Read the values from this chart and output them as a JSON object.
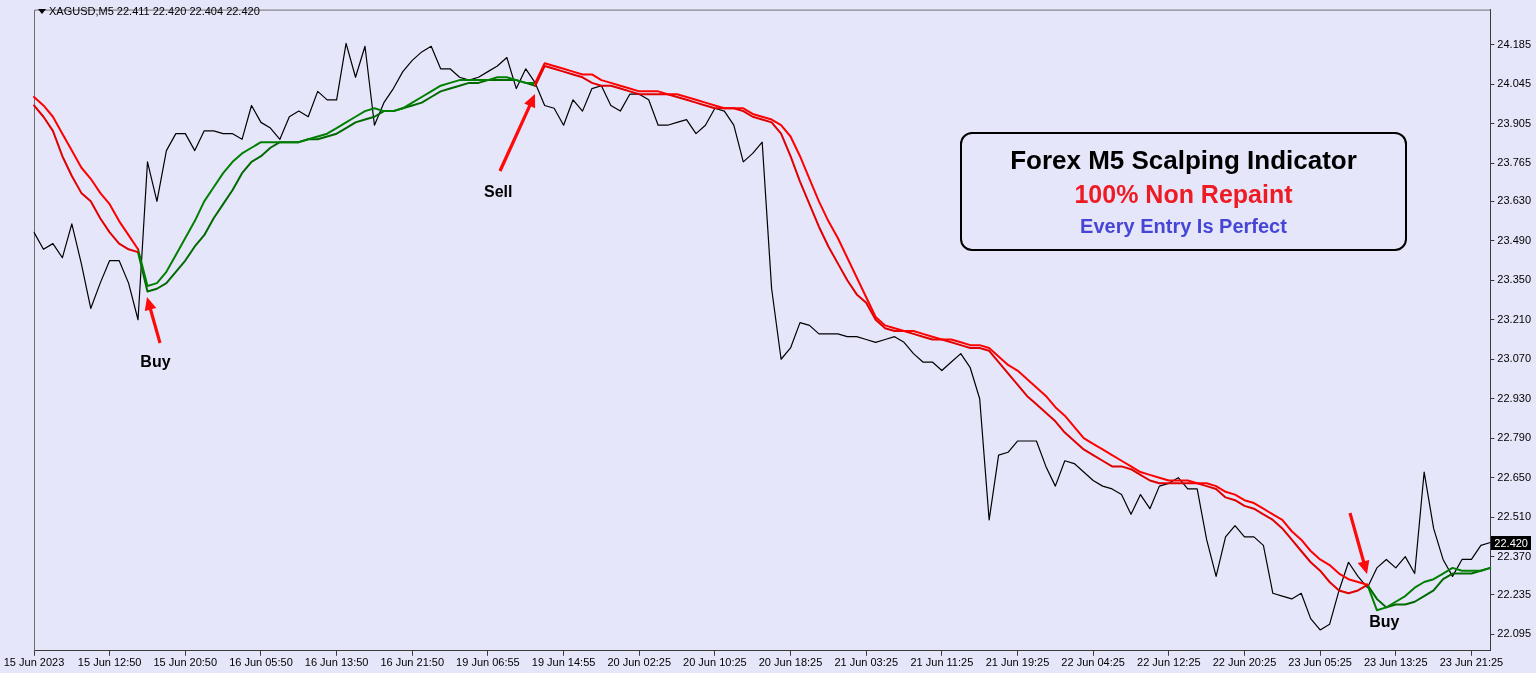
{
  "chart_data": {
    "type": "line",
    "title": "XAGUSD,M5 22.411 22.420 22.404 22.420",
    "annotations": [
      "Forex M5 Scalping Indicator",
      "100% Non Repaint",
      "Every Entry Is Perfect",
      "Buy",
      "Sell",
      "Buy",
      {
        "text": "22.420",
        "y": 22.42
      }
    ],
    "categories": [
      "15 Jun 2023",
      null,
      null,
      null,
      null,
      null,
      null,
      null,
      "15 Jun 12:50",
      null,
      null,
      null,
      null,
      null,
      null,
      null,
      "15 Jun 20:50",
      null,
      null,
      null,
      null,
      null,
      null,
      null,
      "16 Jun 05:50",
      null,
      null,
      null,
      null,
      null,
      null,
      null,
      "16 Jun 13:50",
      null,
      null,
      null,
      null,
      null,
      null,
      null,
      "16 Jun 21:50",
      null,
      null,
      null,
      null,
      null,
      null,
      null,
      "19 Jun 06:55",
      null,
      null,
      null,
      null,
      null,
      null,
      null,
      "19 Jun 14:55",
      null,
      null,
      null,
      null,
      null,
      null,
      null,
      "20 Jun 02:25",
      null,
      null,
      null,
      null,
      null,
      null,
      null,
      "20 Jun 10:25",
      null,
      null,
      null,
      null,
      null,
      null,
      null,
      "20 Jun 18:25",
      null,
      null,
      null,
      null,
      null,
      null,
      null,
      "21 Jun 03:25",
      null,
      null,
      null,
      null,
      null,
      null,
      null,
      "21 Jun 11:25",
      null,
      null,
      null,
      null,
      null,
      null,
      null,
      "21 Jun 19:25",
      null,
      null,
      null,
      null,
      null,
      null,
      null,
      "22 Jun 04:25",
      null,
      null,
      null,
      null,
      null,
      null,
      null,
      "22 Jun 12:25",
      null,
      null,
      null,
      null,
      null,
      null,
      null,
      "22 Jun 20:25",
      null,
      null,
      null,
      null,
      null,
      null,
      null,
      "23 Jun 05:25",
      null,
      null,
      null,
      null,
      null,
      null,
      null,
      "23 Jun 13:25",
      null,
      null,
      null,
      null,
      null,
      null,
      null,
      "23 Jun 21:25",
      null,
      null
    ],
    "series": [
      {
        "color": "#000000",
        "values": [
          23.52,
          23.46,
          23.48,
          23.43,
          23.55,
          23.41,
          23.25,
          23.34,
          23.42,
          23.42,
          23.34,
          23.21,
          23.77,
          23.63,
          23.81,
          23.87,
          23.87,
          23.81,
          23.88,
          23.88,
          23.87,
          23.87,
          23.85,
          23.97,
          23.91,
          23.89,
          23.85,
          23.93,
          23.95,
          23.93,
          24.02,
          23.99,
          23.99,
          24.19,
          24.07,
          24.18,
          23.9,
          23.98,
          24.03,
          24.09,
          24.13,
          24.16,
          24.18,
          24.1,
          24.1,
          24.07,
          24.06,
          24.07,
          24.09,
          24.11,
          24.14,
          24.03,
          24.1,
          24.05,
          23.97,
          23.96,
          23.9,
          23.99,
          23.95,
          24.03,
          24.04,
          23.97,
          23.95,
          24.01,
          24.01,
          23.99,
          23.9,
          23.9,
          23.91,
          23.92,
          23.87,
          23.9,
          23.96,
          23.95,
          23.9,
          23.77,
          23.8,
          23.84,
          23.32,
          23.07,
          23.11,
          23.2,
          23.19,
          23.16,
          23.16,
          23.16,
          23.15,
          23.15,
          23.14,
          23.13,
          23.14,
          23.15,
          23.13,
          23.09,
          23.06,
          23.06,
          23.03,
          23.06,
          23.09,
          23.04,
          22.93,
          22.5,
          22.73,
          22.74,
          22.78,
          22.78,
          22.78,
          22.69,
          22.62,
          22.71,
          22.7,
          22.67,
          22.64,
          22.62,
          22.61,
          22.59,
          22.52,
          22.59,
          22.54,
          22.62,
          22.63,
          22.65,
          22.61,
          22.61,
          22.43,
          22.3,
          22.44,
          22.48,
          22.44,
          22.44,
          22.41,
          22.24,
          22.23,
          22.22,
          22.24,
          22.15,
          22.11,
          22.13,
          22.25,
          22.35,
          22.3,
          22.26,
          22.33,
          22.36,
          22.33,
          22.37,
          22.31,
          22.67,
          22.47,
          22.36,
          22.3,
          22.36,
          22.36,
          22.41,
          22.42
        ]
      },
      {
        "color": "#ff0000",
        "values": [
          24.0,
          23.97,
          23.93,
          23.87,
          23.81,
          23.75,
          23.71,
          23.66,
          23.62,
          23.56,
          23.51,
          23.46,
          null,
          null,
          null,
          null,
          null,
          null,
          null,
          null,
          null,
          null,
          null,
          null,
          null,
          null,
          null,
          null,
          null,
          null,
          null,
          null,
          null,
          null,
          null,
          null,
          null,
          null,
          null,
          null,
          null,
          null,
          null,
          null,
          null,
          null,
          null,
          null,
          null,
          null,
          null,
          null,
          null,
          24.05,
          24.12,
          24.11,
          24.1,
          24.09,
          24.08,
          24.08,
          24.06,
          24.05,
          24.04,
          24.03,
          24.02,
          24.02,
          24.02,
          24.01,
          24.01,
          24.0,
          23.99,
          23.98,
          23.97,
          23.96,
          23.96,
          23.96,
          23.94,
          23.93,
          23.92,
          23.9,
          23.86,
          23.79,
          23.71,
          23.63,
          23.56,
          23.5,
          23.43,
          23.36,
          23.29,
          23.22,
          23.19,
          23.18,
          23.17,
          23.17,
          23.16,
          23.15,
          23.14,
          23.14,
          23.13,
          23.12,
          23.12,
          23.11,
          23.08,
          23.05,
          23.03,
          23.0,
          22.97,
          22.94,
          22.9,
          22.87,
          22.83,
          22.79,
          22.77,
          22.75,
          22.73,
          22.71,
          22.69,
          22.67,
          22.66,
          22.65,
          22.64,
          22.64,
          22.64,
          22.63,
          22.63,
          22.62,
          22.6,
          22.59,
          22.57,
          22.56,
          22.54,
          22.52,
          22.5,
          22.46,
          22.43,
          22.39,
          22.36,
          22.34,
          22.31,
          22.29,
          22.28,
          22.27,
          null,
          null,
          null,
          null,
          null,
          null,
          null,
          null,
          null,
          null,
          null,
          null,
          null
        ]
      },
      {
        "color": "#e00000",
        "values": [
          23.97,
          23.93,
          23.88,
          23.79,
          23.72,
          23.66,
          23.63,
          23.57,
          23.52,
          23.48,
          23.46,
          23.45,
          null,
          null,
          null,
          null,
          null,
          null,
          null,
          null,
          null,
          null,
          null,
          null,
          null,
          null,
          null,
          null,
          null,
          null,
          null,
          null,
          null,
          null,
          null,
          null,
          null,
          null,
          null,
          null,
          null,
          null,
          null,
          null,
          null,
          null,
          null,
          null,
          null,
          null,
          null,
          null,
          null,
          24.04,
          24.11,
          24.1,
          24.09,
          24.08,
          24.07,
          24.05,
          24.04,
          24.04,
          24.03,
          24.02,
          24.01,
          24.01,
          24.01,
          24.01,
          24.0,
          23.99,
          23.98,
          23.97,
          23.96,
          23.96,
          23.96,
          23.95,
          23.93,
          23.92,
          23.91,
          23.87,
          23.79,
          23.7,
          23.62,
          23.54,
          23.47,
          23.41,
          23.35,
          23.3,
          23.27,
          23.21,
          23.18,
          23.17,
          23.17,
          23.16,
          23.15,
          23.14,
          23.14,
          23.13,
          23.12,
          23.11,
          23.11,
          23.1,
          23.06,
          23.02,
          22.98,
          22.94,
          22.91,
          22.88,
          22.85,
          22.81,
          22.78,
          22.75,
          22.73,
          22.71,
          22.69,
          22.69,
          22.68,
          22.66,
          22.64,
          22.63,
          22.63,
          22.63,
          22.63,
          22.63,
          22.62,
          22.61,
          22.58,
          22.57,
          22.55,
          22.54,
          22.52,
          22.5,
          22.47,
          22.43,
          22.39,
          22.35,
          22.32,
          22.28,
          22.25,
          22.24,
          22.25,
          22.27,
          null,
          null,
          null,
          null,
          null,
          null,
          null,
          null,
          null,
          null,
          null,
          null,
          null
        ]
      },
      {
        "color": "#008000",
        "values": [
          null,
          null,
          null,
          null,
          null,
          null,
          null,
          null,
          null,
          null,
          null,
          23.46,
          23.33,
          23.34,
          23.38,
          23.44,
          23.5,
          23.56,
          23.63,
          23.68,
          23.73,
          23.77,
          23.8,
          23.82,
          23.84,
          23.84,
          23.84,
          23.84,
          23.84,
          23.85,
          23.86,
          23.87,
          23.89,
          23.91,
          23.93,
          23.95,
          23.96,
          23.95,
          23.95,
          23.96,
          23.98,
          24.0,
          24.02,
          24.04,
          24.05,
          24.06,
          24.06,
          24.06,
          24.06,
          24.07,
          24.07,
          24.06,
          24.05,
          24.05,
          null,
          null,
          null,
          null,
          null,
          null,
          null,
          null,
          null,
          null,
          null,
          null,
          null,
          null,
          null,
          null,
          null,
          null,
          null,
          null,
          null,
          null,
          null,
          null,
          null,
          null,
          null,
          null,
          null,
          null,
          null,
          null,
          null,
          null,
          null,
          null,
          null,
          null,
          null,
          null,
          null,
          null,
          null,
          null,
          null,
          null,
          null,
          null,
          null,
          null,
          null,
          null,
          null,
          null,
          null,
          null,
          null,
          null,
          null,
          null,
          null,
          null,
          null,
          null,
          null,
          null,
          null,
          null,
          null,
          null,
          null,
          null,
          null,
          null,
          null,
          null,
          null,
          null,
          null,
          null,
          null,
          null,
          null,
          null,
          null,
          null,
          null,
          22.27,
          22.18,
          22.19,
          22.21,
          22.23,
          22.26,
          22.28,
          22.29,
          22.31,
          22.33,
          22.32,
          22.32,
          22.32,
          22.33
        ]
      },
      {
        "color": "#006a00",
        "values": [
          null,
          null,
          null,
          null,
          null,
          null,
          null,
          null,
          null,
          null,
          null,
          23.45,
          23.31,
          23.32,
          23.34,
          23.38,
          23.42,
          23.47,
          23.51,
          23.57,
          23.62,
          23.67,
          23.73,
          23.77,
          23.79,
          23.82,
          23.84,
          23.84,
          23.84,
          23.85,
          23.85,
          23.86,
          23.87,
          23.89,
          23.91,
          23.92,
          23.93,
          23.95,
          23.95,
          23.96,
          23.97,
          23.98,
          24.0,
          24.02,
          24.03,
          24.04,
          24.05,
          24.05,
          24.06,
          24.06,
          24.06,
          24.06,
          24.05,
          24.04,
          null,
          null,
          null,
          null,
          null,
          null,
          null,
          null,
          null,
          null,
          null,
          null,
          null,
          null,
          null,
          null,
          null,
          null,
          null,
          null,
          null,
          null,
          null,
          null,
          null,
          null,
          null,
          null,
          null,
          null,
          null,
          null,
          null,
          null,
          null,
          null,
          null,
          null,
          null,
          null,
          null,
          null,
          null,
          null,
          null,
          null,
          null,
          null,
          null,
          null,
          null,
          null,
          null,
          null,
          null,
          null,
          null,
          null,
          null,
          null,
          null,
          null,
          null,
          null,
          null,
          null,
          null,
          null,
          null,
          null,
          null,
          null,
          null,
          null,
          null,
          null,
          null,
          null,
          null,
          null,
          null,
          null,
          null,
          null,
          null,
          null,
          null,
          22.27,
          22.22,
          22.19,
          22.2,
          22.2,
          22.21,
          22.23,
          22.25,
          22.29,
          22.31,
          22.31,
          22.31,
          22.32,
          22.33
        ]
      }
    ],
    "ylim": [
      22.036,
      24.31
    ],
    "yticks": [
      22.095,
      22.235,
      {
        "value": 22.37,
        "label": "22.370"
      },
      {
        "value": 22.51,
        "label": "22.510"
      },
      {
        "value": 22.65,
        "label": "22.650"
      },
      {
        "value": 22.79,
        "label": "22.790"
      },
      {
        "value": 22.93,
        "label": "22.930"
      },
      {
        "value": 23.07,
        "label": "23.070"
      },
      {
        "value": 23.21,
        "label": "23.210"
      },
      {
        "value": 23.35,
        "label": "23.350"
      },
      {
        "value": 23.49,
        "label": "23.490"
      },
      {
        "value": 23.63,
        "label": "23.630"
      },
      23.765,
      23.905,
      24.045,
      24.185
    ],
    "marker": "none"
  }
}
